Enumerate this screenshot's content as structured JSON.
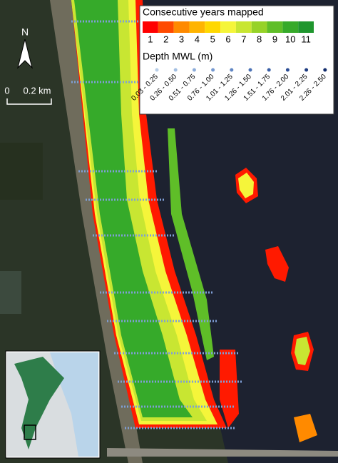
{
  "legend": {
    "years": {
      "title": "Consecutive years mapped",
      "classes": [
        {
          "label": "1",
          "color": "#ff0000"
        },
        {
          "label": "2",
          "color": "#ff4a00"
        },
        {
          "label": "3",
          "color": "#ff8a00"
        },
        {
          "label": "4",
          "color": "#ffb400"
        },
        {
          "label": "5",
          "color": "#ffd800"
        },
        {
          "label": "6",
          "color": "#f5f53a"
        },
        {
          "label": "7",
          "color": "#c8e632"
        },
        {
          "label": "8",
          "color": "#96d228"
        },
        {
          "label": "9",
          "color": "#5fbe28"
        },
        {
          "label": "10",
          "color": "#36aa2a"
        },
        {
          "label": "11",
          "color": "#1f962e"
        }
      ]
    },
    "depth": {
      "title": "Depth MWL (m)",
      "classes": [
        {
          "label": "0.03 - 0.25",
          "color": "#b9cfe8"
        },
        {
          "label": "0.26 - 0.50",
          "color": "#a3bfe2"
        },
        {
          "label": "0.51 - 0.75",
          "color": "#8cacda"
        },
        {
          "label": "0.76 - 1.00",
          "color": "#7699d0"
        },
        {
          "label": "1.01 - 1.25",
          "color": "#6086c4"
        },
        {
          "label": "1.26 - 1.50",
          "color": "#4b72b6"
        },
        {
          "label": "1.51 - 1.75",
          "color": "#3a5fa6"
        },
        {
          "label": "1.76 - 2.00",
          "color": "#2b4d94"
        },
        {
          "label": "2.01 - 2.25",
          "color": "#1d3b80"
        },
        {
          "label": "2.26 - 2.50",
          "color": "#112b6b"
        }
      ]
    }
  },
  "north_arrow": {
    "label": "N"
  },
  "scale_bar": {
    "start": "0",
    "end": "0.2 km"
  }
}
